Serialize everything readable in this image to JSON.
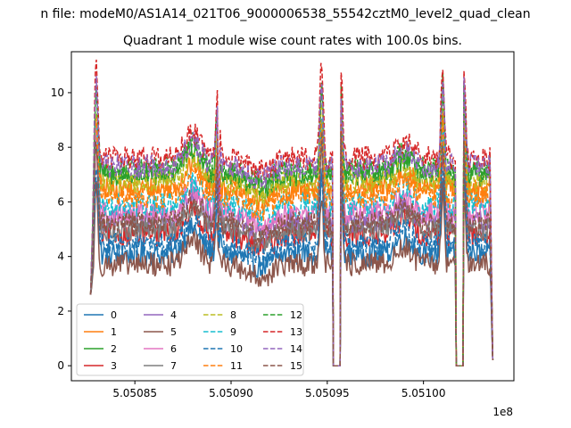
{
  "figure": {
    "suptitle": "n file: modeM0/AS1A14_021T06_9000006538_55542cztM0_level2_quad_clean",
    "axes_title": "Quadrant 1 module wise count rates with 100.0s bins."
  },
  "chart_data": {
    "type": "line",
    "title": "Quadrant 1 module wise count rates with 100.0s bins.",
    "xlabel": "",
    "ylabel": "",
    "x_offset_label": "1e8",
    "xlim": [
      5.050817,
      5.051047
    ],
    "ylim": [
      -0.55,
      11.5
    ],
    "x_ticks": [
      5.05085,
      5.0509,
      5.05095,
      5.051
    ],
    "x_tick_labels": [
      "5.05085",
      "5.05090",
      "5.05095",
      "5.05100"
    ],
    "y_ticks": [
      0,
      2,
      4,
      6,
      8,
      10
    ],
    "y_tick_labels": [
      "0",
      "2",
      "4",
      "6",
      "8",
      "10"
    ],
    "x_units": "1e8 s",
    "x_start": 5.050827,
    "x_end": 5.051036,
    "zero_gaps": [
      [
        5.050953,
        5.050957
      ],
      [
        5.051017,
        5.051021
      ]
    ],
    "spikes": [
      5.05083,
      5.050893,
      5.050947,
      5.050957,
      5.05101,
      5.051021
    ],
    "series": [
      {
        "name": "0",
        "color": "#1f77b4",
        "dash": "solid",
        "base": 4.1,
        "peak": 7.0
      },
      {
        "name": "1",
        "color": "#ff7f0e",
        "dash": "solid",
        "base": 6.5,
        "peak": 9.0
      },
      {
        "name": "2",
        "color": "#2ca02c",
        "dash": "solid",
        "base": 7.0,
        "peak": 10.3
      },
      {
        "name": "3",
        "color": "#d62728",
        "dash": "solid",
        "base": 4.8,
        "peak": 8.0
      },
      {
        "name": "4",
        "color": "#9467bd",
        "dash": "solid",
        "base": 5.3,
        "peak": 8.6
      },
      {
        "name": "5",
        "color": "#8c564b",
        "dash": "solid",
        "base": 3.7,
        "peak": 6.4
      },
      {
        "name": "6",
        "color": "#e377c2",
        "dash": "solid",
        "base": 5.6,
        "peak": 8.5
      },
      {
        "name": "7",
        "color": "#7f7f7f",
        "dash": "solid",
        "base": 5.0,
        "peak": 8.2
      },
      {
        "name": "8",
        "color": "#bcbd22",
        "dash": "dashed",
        "base": 6.7,
        "peak": 9.4
      },
      {
        "name": "9",
        "color": "#17becf",
        "dash": "dashed",
        "base": 5.9,
        "peak": 8.8
      },
      {
        "name": "10",
        "color": "#1f77b4",
        "dash": "dashed",
        "base": 4.4,
        "peak": 7.2
      },
      {
        "name": "11",
        "color": "#ff7f0e",
        "dash": "dashed",
        "base": 6.2,
        "peak": 9.0
      },
      {
        "name": "12",
        "color": "#2ca02c",
        "dash": "dashed",
        "base": 7.2,
        "peak": 10.1
      },
      {
        "name": "13",
        "color": "#d62728",
        "dash": "dashed",
        "base": 7.6,
        "peak": 10.9
      },
      {
        "name": "14",
        "color": "#9467bd",
        "dash": "dashed",
        "base": 7.3,
        "peak": 10.2
      },
      {
        "name": "15",
        "color": "#8c564b",
        "dash": "dashed",
        "base": 5.2,
        "peak": 8.3
      }
    ],
    "legend": {
      "location": "lower-left",
      "columns": 4
    }
  }
}
